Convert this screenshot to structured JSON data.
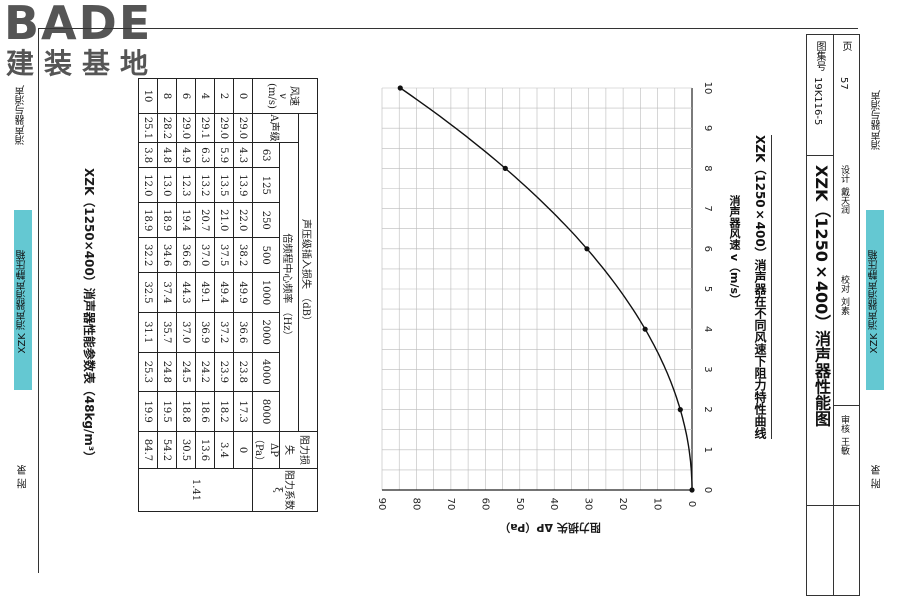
{
  "logo": {
    "word": "BADE",
    "cn": "建装基地"
  },
  "left_strip": {
    "top_text": "消声器与消声",
    "teal_text": "XZK 消声器消声静压箱",
    "bottom_text": "附 录"
  },
  "right_strip": {
    "top_text": "消声器与消声",
    "teal_text": "XZK 消声器消声静压箱",
    "bottom_text": "附 录"
  },
  "table": {
    "title": "XZK（1250×400）消声器性能参数表（48kg/m³）",
    "header_speed": "风速",
    "header_v": "v",
    "header_unit": "(m/s)",
    "header_attenuation": "声压级插入损失 （dB）",
    "header_a": "A声级",
    "header_octave": "倍频程中心频率 （Hz）",
    "header_resistance": "阻力损失",
    "header_dp": "ΔP",
    "header_pa": "（Pa）",
    "header_coef": "阻力系数",
    "header_xi": "ξ",
    "freqs": [
      "63",
      "125",
      "250",
      "500",
      "1000",
      "2000",
      "4000",
      "8000"
    ],
    "rows": [
      {
        "v": "0",
        "a": "29.0",
        "vals": [
          "4.3",
          "13.9",
          "22.0",
          "38.2",
          "49.9",
          "36.6",
          "23.8",
          "17.3"
        ],
        "dp": "0"
      },
      {
        "v": "2",
        "a": "29.0",
        "vals": [
          "5.9",
          "13.5",
          "21.0",
          "37.5",
          "49.4",
          "37.2",
          "23.9",
          "18.2"
        ],
        "dp": "3.4"
      },
      {
        "v": "4",
        "a": "29.1",
        "vals": [
          "6.3",
          "13.2",
          "20.7",
          "37.0",
          "49.1",
          "36.9",
          "24.2",
          "18.6"
        ],
        "dp": "13.6"
      },
      {
        "v": "6",
        "a": "29.0",
        "vals": [
          "4.9",
          "12.3",
          "19.4",
          "36.6",
          "44.3",
          "37.0",
          "24.5",
          "18.8"
        ],
        "dp": "30.5"
      },
      {
        "v": "8",
        "a": "28.2",
        "vals": [
          "4.8",
          "13.0",
          "18.9",
          "34.6",
          "37.4",
          "35.7",
          "24.8",
          "19.5"
        ],
        "dp": "54.2"
      },
      {
        "v": "10",
        "a": "25.1",
        "vals": [
          "3.8",
          "12.0",
          "18.9",
          "32.2",
          "32.5",
          "31.1",
          "25.3",
          "19.9"
        ],
        "dp": "84.7"
      }
    ],
    "xi": "1.41"
  },
  "chart_data": {
    "type": "line",
    "title": "XZK（1250×400）消声器在不同风速下阻力特性曲线",
    "xlabel": "消声器风速 v（m/s）",
    "ylabel": "阻力损失 ΔP（Pa）",
    "x_ticks": [
      "0",
      "1",
      "2",
      "3",
      "4",
      "5",
      "6",
      "7",
      "8",
      "9",
      "10"
    ],
    "y_ticks": [
      "0",
      "10",
      "20",
      "30",
      "40",
      "50",
      "60",
      "70",
      "80",
      "90"
    ],
    "xlim": [
      0,
      10
    ],
    "ylim": [
      0,
      90
    ],
    "series": [
      {
        "x": [
          0,
          2,
          4,
          6,
          8,
          10
        ],
        "y": [
          0,
          3.4,
          13.6,
          30.5,
          54.2,
          84.7
        ]
      }
    ],
    "grid": true
  },
  "title_block": {
    "main_title": "XZK（1250×400）消声器性能图",
    "atlas_label": "图集号",
    "atlas_no": "19K116-5",
    "page_label": "页",
    "page_no": "57",
    "review_label": "审核",
    "review_name": "王敏",
    "check_label": "校对",
    "check_name": "刘素",
    "design_label": "设计",
    "design_name": "戴天润"
  }
}
